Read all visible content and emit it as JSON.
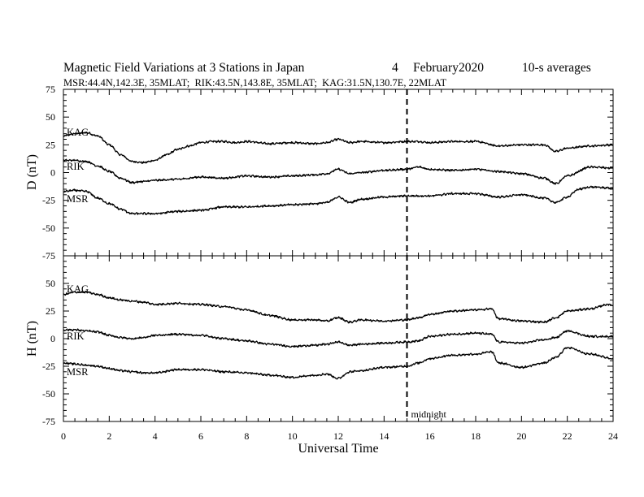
{
  "header": {
    "title": "Magnetic Field Variations at 3 Stations in Japan",
    "date_day": "4",
    "date_month_year": "February2020",
    "averaging": "10-s averages",
    "stations_line": "MSR:44.4N,142.3E, 35MLAT;  RIK:43.5N,143.8E, 35MLAT;  KAG:31.5N,130.7E, 22MLAT"
  },
  "chart_data": {
    "type": "line",
    "x_label": "Universal Time",
    "x_range": [
      0,
      24
    ],
    "x_ticks": [
      0,
      2,
      4,
      6,
      8,
      10,
      12,
      14,
      16,
      18,
      20,
      22,
      24
    ],
    "annotations": [
      {
        "x": 15,
        "label": "midnight",
        "style": "dashed-vertical"
      }
    ],
    "panels": [
      {
        "id": "D",
        "ylabel": "D (nT)",
        "ylim": [
          -75,
          75
        ],
        "y_ticks": [
          75,
          50,
          25,
          0,
          -25,
          -50,
          -75
        ],
        "series": [
          {
            "name": "KAG",
            "x": [
              0,
              0.5,
              1,
              1.5,
              2,
              2.5,
              3,
              3.5,
              4,
              4.5,
              5,
              5.5,
              6,
              6.5,
              7,
              7.5,
              8,
              9,
              10,
              11,
              11.5,
              12,
              12.5,
              13,
              14,
              15,
              15.5,
              16,
              17,
              18,
              19,
              20,
              21,
              21.5,
              22,
              23,
              24
            ],
            "values": [
              33,
              35,
              36,
              33,
              25,
              16,
              10,
              9,
              11,
              16,
              21,
              24,
              27,
              28,
              28,
              27,
              28,
              26,
              27,
              26,
              27,
              30,
              27,
              28,
              27,
              28,
              28,
              27,
              28,
              28,
              24,
              25,
              25,
              19,
              22,
              24,
              25
            ]
          },
          {
            "name": "RIK",
            "x": [
              0,
              0.5,
              1,
              1.5,
              2,
              2.5,
              3,
              3.5,
              4,
              5,
              6,
              7,
              8,
              9,
              10,
              11,
              11.5,
              12,
              12.5,
              13,
              14,
              15,
              15.5,
              16,
              17,
              18,
              19,
              20,
              21,
              21.5,
              22,
              23,
              24
            ],
            "values": [
              11,
              11,
              10,
              6,
              1,
              -5,
              -9,
              -8,
              -7,
              -6,
              -4,
              -5,
              -3,
              -4,
              -3,
              -2,
              -1,
              3,
              -1,
              0,
              2,
              3,
              5,
              3,
              2,
              3,
              1,
              -1,
              -5,
              -10,
              -3,
              5,
              4
            ]
          },
          {
            "name": "MSR",
            "x": [
              0,
              0.5,
              1,
              1.5,
              2,
              2.5,
              3,
              3.5,
              4,
              5,
              6,
              7,
              8,
              9,
              10,
              11,
              11.5,
              12,
              12.5,
              13,
              14,
              15,
              15.5,
              16,
              17,
              18,
              19,
              20,
              21,
              21.5,
              22,
              22.5,
              23,
              24
            ],
            "values": [
              -17,
              -16,
              -17,
              -23,
              -28,
              -33,
              -37,
              -37,
              -37,
              -35,
              -34,
              -31,
              -31,
              -30,
              -29,
              -28,
              -27,
              -22,
              -27,
              -24,
              -22,
              -21,
              -21,
              -21,
              -19,
              -19,
              -22,
              -20,
              -23,
              -27,
              -22,
              -15,
              -13,
              -14
            ]
          }
        ]
      },
      {
        "id": "H",
        "ylabel": "H (nT)",
        "ylim": [
          -75,
          75
        ],
        "y_ticks": [
          50,
          25,
          0,
          -25,
          -50,
          -75
        ],
        "series": [
          {
            "name": "KAG",
            "x": [
              0,
              0.5,
              1,
              1.5,
              2,
              2.5,
              3,
              3.5,
              4,
              5,
              6,
              7,
              8,
              9,
              10,
              11,
              11.5,
              12,
              12.5,
              13,
              14,
              15,
              15.5,
              16,
              17,
              18,
              18.7,
              19,
              20,
              21,
              21.5,
              22,
              23,
              23.8,
              24
            ],
            "values": [
              40,
              42,
              42,
              40,
              37,
              35,
              34,
              33,
              31,
              32,
              31,
              29,
              26,
              21,
              17,
              17,
              16,
              19,
              15,
              17,
              16,
              17,
              19,
              22,
              25,
              26,
              27,
              18,
              16,
              15,
              19,
              25,
              27,
              31,
              30
            ]
          },
          {
            "name": "RIK",
            "x": [
              0,
              0.5,
              1,
              1.5,
              2,
              2.5,
              3,
              3.5,
              4,
              5,
              6,
              7,
              8,
              9,
              10,
              11,
              11.5,
              12,
              12.5,
              13,
              14,
              15,
              15.5,
              16,
              17,
              18,
              18.7,
              19,
              20,
              21,
              21.5,
              22,
              23,
              24
            ],
            "values": [
              8,
              8,
              7,
              6,
              3,
              1,
              0,
              1,
              3,
              4,
              3,
              0,
              -2,
              -5,
              -7,
              -6,
              -5,
              -3,
              -6,
              -5,
              -4,
              -3,
              -2,
              2,
              4,
              5,
              4,
              -3,
              -4,
              -1,
              1,
              7,
              2,
              2
            ]
          },
          {
            "name": "MSR",
            "x": [
              0,
              0.5,
              1,
              1.5,
              2,
              2.5,
              3,
              3.5,
              4,
              5,
              6,
              7,
              8,
              9,
              10,
              11,
              11.5,
              12,
              12.5,
              13,
              14,
              15,
              15.5,
              16,
              17,
              18,
              18.7,
              19,
              20,
              21,
              21.5,
              22,
              23,
              24
            ],
            "values": [
              -22,
              -23,
              -24,
              -25,
              -27,
              -29,
              -30,
              -31,
              -31,
              -28,
              -28,
              -30,
              -31,
              -33,
              -35,
              -33,
              -32,
              -36,
              -30,
              -29,
              -26,
              -25,
              -22,
              -18,
              -15,
              -14,
              -12,
              -22,
              -26,
              -22,
              -17,
              -8,
              -14,
              -18
            ]
          }
        ]
      }
    ]
  }
}
